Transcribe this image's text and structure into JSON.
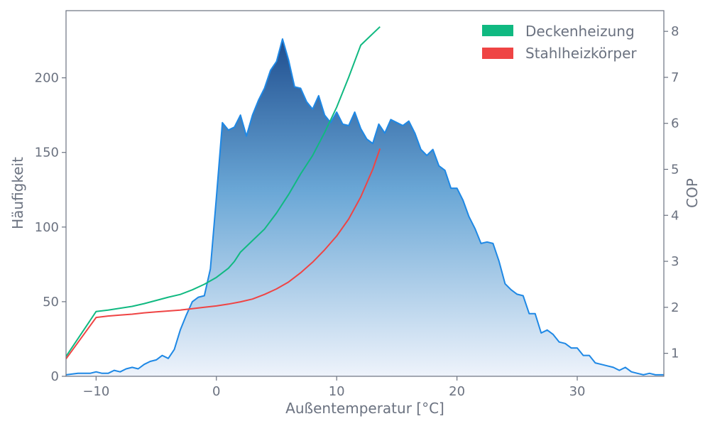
{
  "chart_data": {
    "type": "area",
    "xlabel": "Außentemperatur [°C]",
    "ylabel_left": "Häufigkeit",
    "ylabel_right": "COP",
    "xlim": [
      -12.5,
      37.2
    ],
    "ylim_left": [
      0,
      245
    ],
    "ylim_right": [
      0.5,
      8.45
    ],
    "x_ticks": [
      -10,
      0,
      10,
      20,
      30
    ],
    "x_tick_labels": [
      "−10",
      "0",
      "10",
      "20",
      "30"
    ],
    "y_left_ticks": [
      0,
      50,
      100,
      150,
      200
    ],
    "y_right_ticks": [
      1,
      2,
      3,
      4,
      5,
      6,
      7,
      8
    ],
    "grid": false,
    "legend_position": "top-right",
    "colors": {
      "histogram_line": "#1e88e5",
      "histogram_fill_top": "#1f4e8f",
      "histogram_fill_bottom": "#eef3fb",
      "deckenheizung": "#10b981",
      "stahlheizkoerper": "#ef4444",
      "axis": "#6b7280"
    },
    "histogram": {
      "x": [
        -12.5,
        -11.5,
        -11,
        -10.5,
        -10,
        -9.5,
        -9,
        -8.5,
        -8,
        -7.5,
        -7,
        -6.5,
        -6,
        -5.5,
        -5,
        -4.5,
        -4,
        -3.5,
        -3,
        -2.5,
        -2,
        -1.5,
        -1,
        -0.5,
        0,
        0.5,
        1,
        1.5,
        2,
        2.5,
        3,
        3.5,
        4,
        4.5,
        5,
        5.5,
        6,
        6.5,
        7,
        7.5,
        8,
        8.5,
        9,
        9.5,
        10,
        10.5,
        11,
        11.5,
        12,
        12.5,
        13,
        13.5,
        14,
        14.5,
        15,
        15.5,
        16,
        16.5,
        17,
        17.5,
        18,
        18.5,
        19,
        19.5,
        20,
        20.5,
        21,
        21.5,
        22,
        22.5,
        23,
        23.5,
        24,
        24.5,
        25,
        25.5,
        26,
        26.5,
        27,
        27.5,
        28,
        28.5,
        29,
        29.5,
        30,
        30.5,
        31,
        31.5,
        32,
        32.5,
        33,
        33.5,
        34,
        34.5,
        35,
        35.5,
        36,
        36.5,
        37.2
      ],
      "values": [
        1,
        2,
        2,
        2,
        3,
        2,
        2,
        4,
        3,
        5,
        6,
        5,
        8,
        10,
        11,
        14,
        12,
        18,
        31,
        41,
        50,
        53,
        54,
        72,
        120,
        170,
        165,
        167,
        175,
        161,
        175,
        185,
        193,
        205,
        211,
        226,
        212,
        194,
        193,
        184,
        179,
        188,
        175,
        170,
        177,
        169,
        168,
        177,
        166,
        159,
        156,
        169,
        163,
        172,
        170,
        168,
        171,
        163,
        152,
        148,
        152,
        141,
        138,
        126,
        126,
        118,
        107,
        99,
        89,
        90,
        89,
        77,
        62,
        58,
        55,
        54,
        42,
        42,
        29,
        31,
        28,
        23,
        22,
        19,
        19,
        14,
        14,
        9,
        8,
        7,
        6,
        4,
        6,
        3,
        2,
        1,
        2,
        1,
        1
      ]
    },
    "series": [
      {
        "name": "Deckenheizung",
        "axis": "right",
        "x": [
          -12.5,
          -10,
          -9,
          -8,
          -7,
          -6,
          -5,
          -4,
          -3,
          -2,
          -1,
          0,
          1,
          1.5,
          2,
          3,
          4,
          5,
          6,
          7,
          8,
          9,
          10,
          11,
          12,
          13.6
        ],
        "values": [
          0.93,
          1.91,
          1.94,
          1.98,
          2.02,
          2.08,
          2.15,
          2.22,
          2.28,
          2.38,
          2.5,
          2.65,
          2.85,
          3.0,
          3.2,
          3.45,
          3.7,
          4.05,
          4.45,
          4.9,
          5.3,
          5.8,
          6.35,
          7.0,
          7.7,
          8.1
        ]
      },
      {
        "name": "Stahlheizkörper",
        "axis": "right",
        "x": [
          -12.5,
          -10,
          -9,
          -8,
          -7,
          -6,
          -5,
          -4,
          -3,
          -2,
          -1,
          0,
          1,
          2,
          3,
          4,
          5,
          6,
          7,
          8,
          9,
          10,
          11,
          12,
          13,
          13.6
        ],
        "values": [
          0.88,
          1.78,
          1.81,
          1.83,
          1.85,
          1.88,
          1.9,
          1.92,
          1.94,
          1.97,
          2.0,
          2.03,
          2.07,
          2.12,
          2.18,
          2.28,
          2.4,
          2.55,
          2.75,
          2.98,
          3.25,
          3.55,
          3.92,
          4.4,
          5.0,
          5.45
        ]
      }
    ]
  }
}
